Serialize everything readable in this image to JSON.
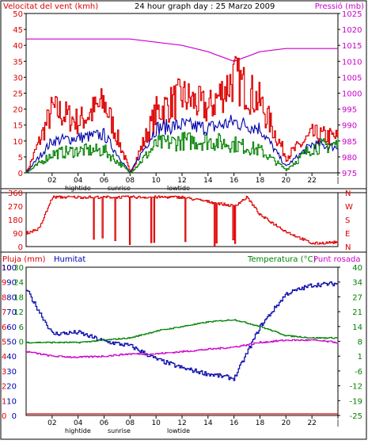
{
  "colors": {
    "wind": "#dd0000",
    "gust": "#0000aa",
    "gust_green": "#008000",
    "pressure": "#cc00cc",
    "humidity": "#0000aa",
    "temperature": "#008000",
    "dewpoint": "#cc00cc",
    "rain": "#dd0000",
    "frame": "#000000",
    "axis_text": "#000000"
  },
  "panel1": {
    "left_label": "Velocitat del vent (kmh)",
    "title": "24 hour graph day : 25 Marzo 2009",
    "right_label": "Pressió (mb)",
    "left_ticks": [
      "50",
      "45",
      "40",
      "35",
      "30",
      "25",
      "20",
      "15",
      "10",
      "5",
      "0"
    ],
    "right_ticks": [
      "1025",
      "1020",
      "1015",
      "1010",
      "1005",
      "1000",
      "995",
      "990",
      "985",
      "980",
      "975"
    ],
    "x_ticks": [
      "02",
      "04",
      "06",
      "08",
      "10",
      "12",
      "14",
      "16",
      "18",
      "20",
      "22",
      "|"
    ],
    "tide_labels": [
      "hightide",
      "sunrise",
      "lowtide"
    ]
  },
  "panel2": {
    "left_ticks": [
      "360",
      "270",
      "180",
      "90",
      "0"
    ],
    "right_letters": [
      "N",
      "W",
      "S",
      "E",
      "N"
    ]
  },
  "panel3": {
    "rain_label": "Pluja (mm)",
    "hum_label": "Humitat",
    "temp_label": "Temperatura (°C)",
    "dew_label": "Punt rosada",
    "rain_ticks": [
      "10",
      "9",
      "8",
      "7",
      "6",
      "5",
      "4",
      "3",
      "2",
      "1",
      "0"
    ],
    "hum_ticks": [
      "100",
      "90",
      "80",
      "70",
      "60",
      "50",
      "40",
      "30",
      "20",
      "10",
      "0"
    ],
    "temp_left_ticks": [
      "30",
      "24",
      "18",
      "12",
      "6",
      "0"
    ],
    "temp_right_ticks": [
      "40",
      "34",
      "27",
      "21",
      "14",
      "8",
      "1",
      "-6",
      "-12",
      "-19",
      "-25"
    ],
    "x_ticks": [
      "02",
      "04",
      "06",
      "08",
      "10",
      "12",
      "14",
      "16",
      "18",
      "20",
      "22",
      "|"
    ],
    "tide_labels": [
      "hightide",
      "sunrise",
      "lowtide"
    ]
  },
  "chart_data": [
    {
      "type": "line",
      "title": "24 hour graph day : 25 Marzo 2009",
      "ylabel": "Velocitat del vent (kmh)",
      "y2label": "Pressió (mb)",
      "ylim": [
        0,
        50
      ],
      "y2lim": [
        975,
        1025
      ],
      "x": [
        0,
        2,
        4,
        6,
        8,
        10,
        12,
        14,
        16,
        18,
        20,
        22,
        24
      ],
      "series": [
        {
          "values": [
            0,
            20,
            16,
            22,
            0,
            19,
            24,
            20,
            30,
            22,
            5,
            12,
            11
          ]
        },
        {
          "values": [
            0,
            10,
            11,
            12,
            0,
            14,
            15,
            14,
            16,
            14,
            2,
            9,
            8
          ]
        },
        {
          "values": [
            0,
            6,
            7,
            7,
            0,
            9,
            10,
            10,
            9,
            7,
            1,
            8,
            9
          ]
        },
        {
          "name": "Pressió (mb)",
          "values": [
            1017,
            1017,
            1017,
            1017,
            1017,
            1016,
            1015,
            1013,
            1010,
            1013,
            1014,
            1014,
            1014
          ]
        }
      ]
    },
    {
      "type": "line",
      "ylim": [
        0,
        360
      ],
      "x": [
        0,
        1,
        2,
        4,
        6,
        8,
        10,
        12,
        14,
        16,
        17,
        18,
        20,
        22,
        24
      ],
      "series": [
        {
          "values": [
            90,
            120,
            330,
            330,
            330,
            330,
            330,
            330,
            300,
            270,
            330,
            210,
            100,
            20,
            30
          ]
        }
      ]
    },
    {
      "type": "line",
      "x": [
        0,
        2,
        4,
        6,
        8,
        10,
        12,
        14,
        16,
        18,
        20,
        22,
        24
      ],
      "series": [
        {
          "name": "Humitat",
          "values": [
            85,
            55,
            56,
            50,
            47,
            38,
            32,
            28,
            25,
            60,
            82,
            88,
            89
          ]
        },
        {
          "name": "Temperatura (°C)",
          "values": [
            7,
            7,
            7,
            8,
            9,
            12,
            14,
            16,
            17,
            14,
            10,
            9,
            9
          ]
        },
        {
          "name": "Punt rosada",
          "values": [
            3,
            1,
            0.5,
            1,
            2,
            2,
            3,
            4,
            5,
            7,
            8,
            8,
            7
          ]
        },
        {
          "name": "Pluja (mm)",
          "values": [
            0,
            0,
            0,
            0,
            0,
            0,
            0,
            0,
            0,
            0,
            0,
            0,
            0
          ]
        }
      ],
      "ylim_hum": [
        0,
        100
      ],
      "ylim_temp": [
        -25,
        40
      ],
      "ylim_rain": [
        0,
        10
      ]
    }
  ]
}
